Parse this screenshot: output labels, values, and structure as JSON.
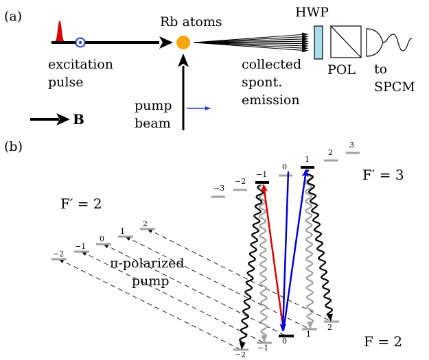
{
  "panel_a": {
    "label": "(a)",
    "rb_atoms": "Rb atoms",
    "hwp": "HWP",
    "pol": "POL",
    "excitation_line1": "excitation",
    "excitation_line2": "pulse",
    "collected_line1": "collected",
    "collected_line2": "spont.",
    "collected_line3": "emission",
    "to_line1": "to",
    "to_line2": "SPCM",
    "pump_line1": "pump",
    "pump_line2": "beam",
    "field_label": "B"
  },
  "panel_b": {
    "label": "(b)",
    "f_prime_3": "F′ = 3",
    "f_prime_2": "F′ = 2",
    "f_2": "F = 2",
    "pump_line1": "π-polarized",
    "pump_line2": "pump",
    "f3_sublevels": [
      "−3",
      "−2",
      "−1",
      "0",
      "1",
      "2",
      "3"
    ],
    "f2p_sublevels": [
      "−2",
      "−1",
      "0",
      "1",
      "2"
    ],
    "g_sublevels": [
      "−2",
      "−1",
      "0",
      "1",
      "2"
    ]
  },
  "colors": {
    "excitation_up": "#e00000",
    "excitation_down": "#0000e0",
    "pump_arrow": "#1f3fd6",
    "atoms": "#f5a70d",
    "hwp_fill": "#a8dce8",
    "gray_level": "#a0a0a0"
  }
}
